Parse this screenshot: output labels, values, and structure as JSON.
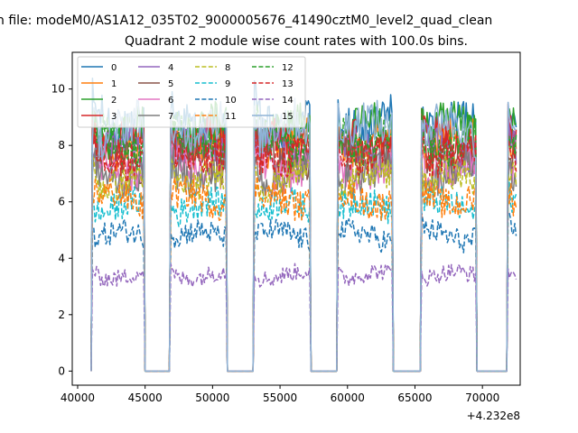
{
  "chart_data": {
    "type": "line",
    "suptitle": "n file: modeM0/AS1A12_035T02_9000005676_41490cztM0_level2_quad_clean",
    "title": "Quadrant 2 module wise count rates with 100.0s bins.",
    "xlabel": "",
    "ylabel": "",
    "x_offset_label": "+4.232e8",
    "xlim": [
      39600,
      72800
    ],
    "ylim": [
      -0.5,
      11.3
    ],
    "xticks": [
      40000,
      45000,
      50000,
      55000,
      60000,
      65000,
      70000
    ],
    "xtick_labels": [
      "40000",
      "45000",
      "50000",
      "55000",
      "60000",
      "65000",
      "70000"
    ],
    "yticks": [
      0,
      2,
      4,
      6,
      8,
      10
    ],
    "ytick_labels": [
      "0",
      "2",
      "4",
      "6",
      "8",
      "10"
    ],
    "grid": false,
    "legend_position": "top-left",
    "bin_seconds": 100,
    "active_intervals": [
      [
        41100,
        44900
      ],
      [
        46900,
        51000
      ],
      [
        53100,
        57200
      ],
      [
        59300,
        63300
      ],
      [
        65500,
        69500
      ],
      [
        71900,
        72500
      ]
    ],
    "gap_value": 0,
    "series": [
      {
        "name": "0",
        "color": "#1f77b4",
        "dash": "solid",
        "mean_rate": 8.8
      },
      {
        "name": "1",
        "color": "#ff7f0e",
        "dash": "solid",
        "mean_rate": 8.1
      },
      {
        "name": "2",
        "color": "#2ca02c",
        "dash": "solid",
        "mean_rate": 8.5
      },
      {
        "name": "3",
        "color": "#d62728",
        "dash": "solid",
        "mean_rate": 8.0
      },
      {
        "name": "4",
        "color": "#9467bd",
        "dash": "solid",
        "mean_rate": 7.8
      },
      {
        "name": "5",
        "color": "#8c564b",
        "dash": "solid",
        "mean_rate": 7.6
      },
      {
        "name": "6",
        "color": "#e377c2",
        "dash": "solid",
        "mean_rate": 7.2
      },
      {
        "name": "7",
        "color": "#7f7f7f",
        "dash": "solid",
        "mean_rate": 7.0
      },
      {
        "name": "8",
        "color": "#bcbd22",
        "dash": "dashed",
        "mean_rate": 6.8
      },
      {
        "name": "9",
        "color": "#17becf",
        "dash": "dashed",
        "mean_rate": 5.8
      },
      {
        "name": "10",
        "color": "#1f77b4",
        "dash": "dashed",
        "mean_rate": 4.8
      },
      {
        "name": "11",
        "color": "#ff7f0e",
        "dash": "dashed",
        "mean_rate": 6.1
      },
      {
        "name": "12",
        "color": "#2ca02c",
        "dash": "dashed",
        "mean_rate": 8.2
      },
      {
        "name": "13",
        "color": "#d62728",
        "dash": "dashed",
        "mean_rate": 7.7
      },
      {
        "name": "14",
        "color": "#9467bd",
        "dash": "dashed",
        "mean_rate": 3.4
      },
      {
        "name": "15",
        "color": "#8fb3d6",
        "dash": "solid",
        "mean_rate": 8.6
      }
    ]
  }
}
